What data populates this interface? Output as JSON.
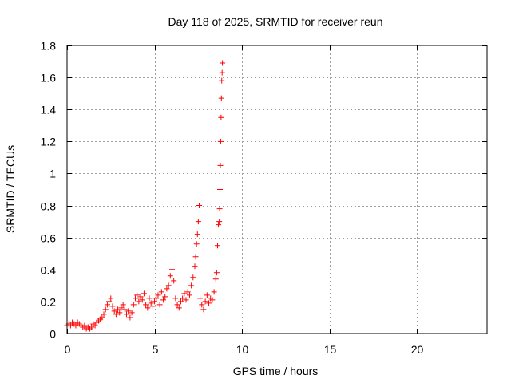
{
  "chart_data": {
    "type": "scatter",
    "title": "Day 118 of 2025, SRMTID for receiver reun",
    "xlabel": "GPS time / hours",
    "ylabel": "SRMTID / TECUs",
    "xlim": [
      0,
      24
    ],
    "ylim": [
      0,
      1.8
    ],
    "xticks": [
      0,
      5,
      10,
      15,
      20
    ],
    "yticks": [
      0,
      0.2,
      0.4,
      0.6,
      0.8,
      1,
      1.2,
      1.4,
      1.6,
      1.8
    ],
    "xtick_labels": [
      "0",
      "5",
      "10",
      "15",
      "20"
    ],
    "ytick_labels": [
      "0",
      "0.2",
      "0.4",
      "0.6",
      "0.8",
      "1",
      "1.2",
      "1.4",
      "1.6",
      "1.8"
    ],
    "grid": true,
    "marker": "+",
    "marker_color": "#ff0000",
    "series": [
      {
        "name": "SRMTID",
        "x": [
          0.0,
          0.1,
          0.2,
          0.3,
          0.4,
          0.5,
          0.6,
          0.7,
          0.8,
          0.9,
          1.0,
          1.1,
          1.2,
          1.3,
          1.4,
          1.5,
          1.6,
          1.7,
          1.8,
          1.9,
          2.0,
          2.1,
          2.2,
          2.3,
          2.4,
          2.5,
          2.6,
          2.7,
          2.8,
          2.9,
          3.0,
          3.1,
          3.2,
          3.3,
          3.4,
          3.5,
          3.6,
          3.7,
          3.8,
          3.9,
          4.0,
          4.1,
          4.2,
          4.3,
          4.4,
          4.5,
          4.6,
          4.7,
          4.8,
          4.9,
          5.0,
          5.1,
          5.2,
          5.3,
          5.4,
          5.5,
          5.6,
          5.7,
          5.8,
          5.9,
          6.0,
          6.1,
          6.2,
          6.3,
          6.4,
          6.5,
          6.6,
          6.7,
          6.8,
          6.9,
          7.0,
          7.1,
          7.2,
          7.3,
          7.35,
          7.4,
          7.45,
          7.5,
          7.55,
          7.6,
          7.7,
          7.8,
          7.9,
          8.0,
          8.1,
          8.2,
          8.3,
          8.4,
          8.5,
          8.55,
          8.6,
          8.65,
          8.7,
          8.72,
          8.74,
          8.76,
          8.78,
          8.8,
          8.82,
          8.84,
          8.86,
          8.88
        ],
        "y": [
          0.05,
          0.06,
          0.05,
          0.07,
          0.06,
          0.05,
          0.07,
          0.06,
          0.05,
          0.04,
          0.05,
          0.03,
          0.04,
          0.03,
          0.04,
          0.06,
          0.05,
          0.07,
          0.08,
          0.09,
          0.1,
          0.12,
          0.15,
          0.18,
          0.2,
          0.22,
          0.17,
          0.14,
          0.12,
          0.15,
          0.13,
          0.16,
          0.18,
          0.15,
          0.12,
          0.14,
          0.1,
          0.13,
          0.18,
          0.22,
          0.24,
          0.2,
          0.23,
          0.21,
          0.25,
          0.18,
          0.16,
          0.22,
          0.19,
          0.17,
          0.2,
          0.22,
          0.24,
          0.18,
          0.26,
          0.21,
          0.23,
          0.28,
          0.3,
          0.36,
          0.4,
          0.33,
          0.22,
          0.18,
          0.16,
          0.2,
          0.22,
          0.25,
          0.21,
          0.26,
          0.24,
          0.3,
          0.35,
          0.42,
          0.48,
          0.56,
          0.62,
          0.7,
          0.8,
          0.22,
          0.18,
          0.15,
          0.2,
          0.24,
          0.19,
          0.22,
          0.21,
          0.26,
          0.34,
          0.38,
          0.55,
          0.68,
          0.7,
          0.78,
          0.9,
          1.05,
          1.2,
          1.35,
          1.47,
          1.58,
          1.63,
          1.69
        ]
      }
    ]
  }
}
